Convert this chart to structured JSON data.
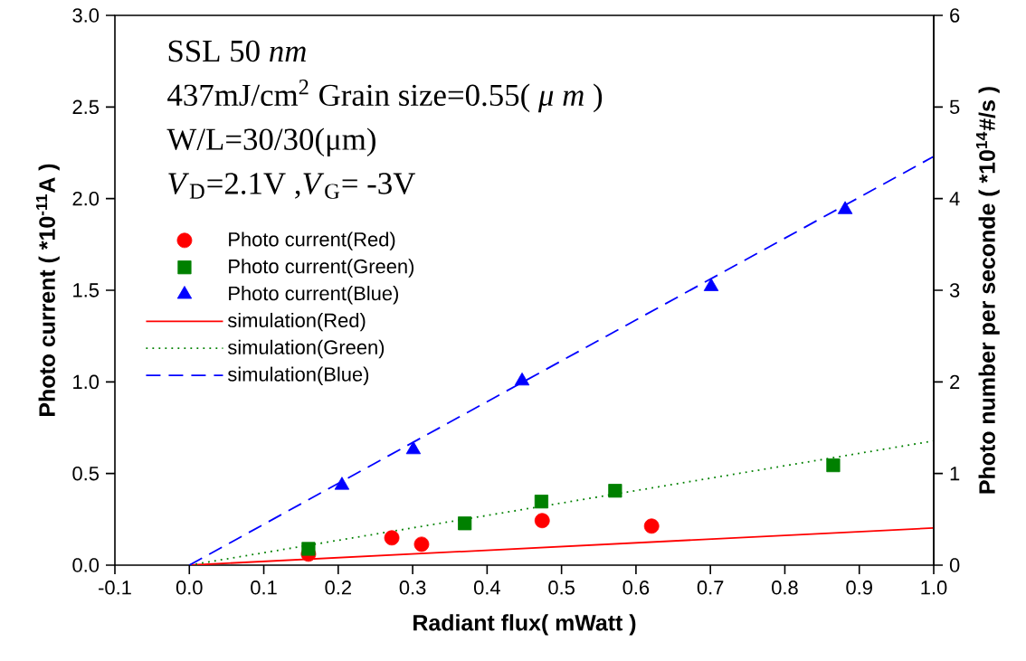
{
  "chart_data": {
    "type": "scatter",
    "xlabel": "Radiant flux( mWatt )",
    "ylabel": "Photo current ( *10$^{-11}$A )",
    "y2label": "Photo number per seconde ( *10$^{14}$#/s )",
    "annotations": [
      "SSL 50 *nm*",
      "437mJ/cm$^{2}$ Grain size=0.55( *μ m* )",
      "W/L=30/30(μm)",
      "*V*$_{D}$=2.1V ,*V*$_{G}$= -3V"
    ],
    "xlim": [
      -0.1,
      1.0
    ],
    "xticks": [
      -0.1,
      {
        "value": 0,
        "label": "0.0"
      },
      0.1,
      0.2,
      0.3,
      0.4,
      0.5,
      0.6,
      0.7,
      0.8,
      0.9,
      {
        "value": 1,
        "label": "1.0"
      }
    ],
    "ylim": [
      0,
      3
    ],
    "yticks": [
      {
        "value": 0,
        "label": "0.0"
      },
      0.5,
      {
        "value": 1,
        "label": "1.0"
      },
      1.5,
      {
        "value": 2,
        "label": "2.0"
      },
      2.5,
      {
        "value": 3,
        "label": "3.0"
      }
    ],
    "y2lim": [
      0,
      6
    ],
    "y2ticks": [
      0,
      1,
      2,
      3,
      4,
      5,
      6
    ],
    "legend": "left",
    "series": [
      {
        "name": "Photo current(Red)",
        "marker": "circle",
        "color": "#ff0000",
        "x": [
          0.16,
          0.272,
          0.312,
          0.474,
          0.621
        ],
        "values": [
          0.06,
          0.149,
          0.114,
          0.243,
          0.213
        ]
      },
      {
        "name": "Photo current(Green)",
        "marker": "square",
        "color": "#008000",
        "x": [
          0.16,
          0.37,
          0.473,
          0.572,
          0.865
        ],
        "values": [
          0.089,
          0.228,
          0.347,
          0.406,
          0.545
        ]
      },
      {
        "name": "Photo current(Blue)",
        "marker": "triangle",
        "color": "#0000ff",
        "x": [
          0.205,
          0.301,
          0.447,
          0.701,
          0.881
        ],
        "values": [
          0.436,
          0.63,
          1.005,
          1.52,
          1.94
        ]
      },
      {
        "name": "simulation(Red)",
        "type": "line",
        "line_style": "solid",
        "color": "#ff0000",
        "x": [
          0,
          1.0
        ],
        "values": [
          0,
          0.203
        ]
      },
      {
        "name": "simulation(Green)",
        "type": "line",
        "line_style": "dotted",
        "color": "#008000",
        "x": [
          0,
          1.0
        ],
        "values": [
          0,
          0.678
        ]
      },
      {
        "name": "simulation(Blue)",
        "type": "line",
        "line_style": "dashed",
        "color": "#0000ff",
        "x": [
          0,
          1.0
        ],
        "values": [
          0,
          2.23
        ]
      }
    ]
  }
}
